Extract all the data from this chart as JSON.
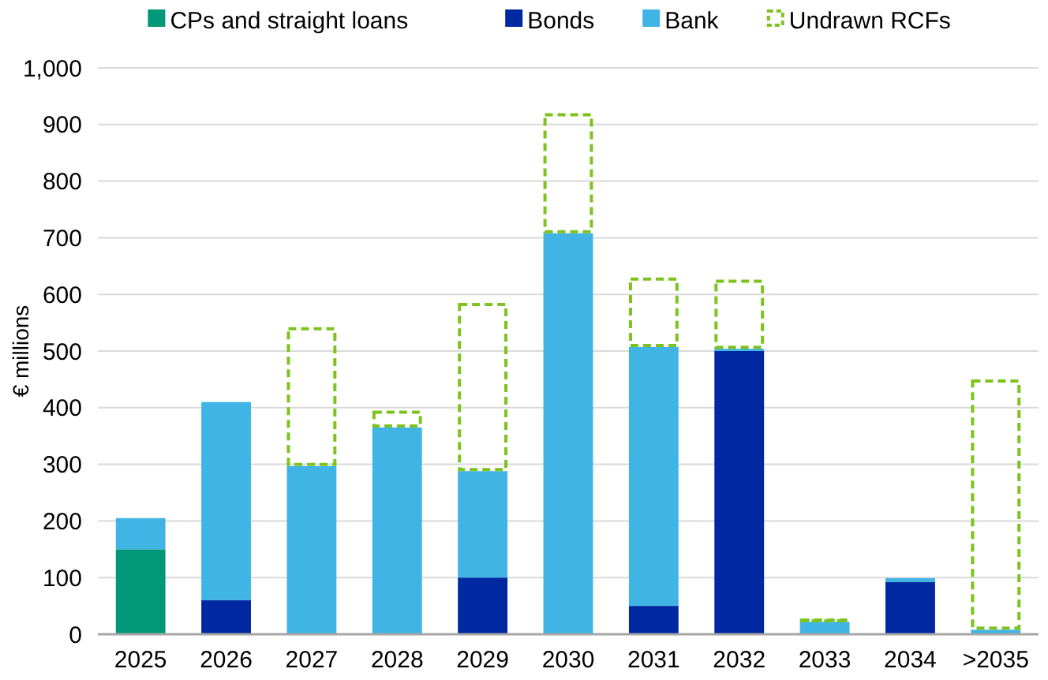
{
  "chart_data": {
    "type": "bar",
    "stacked": true,
    "ylabel": "€ millions",
    "categories": [
      "2025",
      "2026",
      "2027",
      "2028",
      "2029",
      "2030",
      "2031",
      "2032",
      "2033",
      "2034",
      ">2035"
    ],
    "series": [
      {
        "name": "CPs and straight loans",
        "color": "#009879",
        "values": [
          150,
          0,
          0,
          0,
          0,
          0,
          0,
          0,
          0,
          0,
          0
        ]
      },
      {
        "name": "Bonds",
        "color": "#0028a0",
        "values": [
          0,
          60,
          0,
          0,
          100,
          0,
          50,
          500,
          0,
          92,
          0
        ]
      },
      {
        "name": "Bank",
        "color": "#41b4e6",
        "values": [
          55,
          350,
          297,
          365,
          188,
          708,
          457,
          4,
          22,
          7,
          8
        ]
      },
      {
        "name": "Undrawn RCFs",
        "color": "#7dc31e",
        "line_style": "dashed",
        "values": [
          0,
          0,
          245,
          30,
          297,
          212,
          123,
          122,
          6,
          0,
          442
        ]
      }
    ],
    "ylim": [
      0,
      1000
    ],
    "yticks": [
      0,
      100,
      200,
      300,
      400,
      500,
      600,
      700,
      800,
      900,
      {
        "value": 1000,
        "label": "1,000"
      }
    ],
    "grid": "y",
    "legend": "top"
  }
}
